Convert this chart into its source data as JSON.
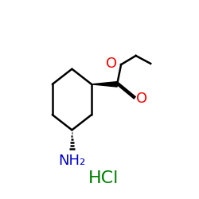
{
  "bg_color": "#ffffff",
  "ring_color": "#000000",
  "bond_width": 1.8,
  "wedge_color": "#000000",
  "dash_color": "#000000",
  "O_color": "#ff0000",
  "N_color": "#0000cc",
  "HCl_color": "#008000",
  "C_bond_color": "#000000",
  "HCl_text": "HCl",
  "HCl_fontsize": 16,
  "NH2_text": "NH₂",
  "NH2_fontsize": 13,
  "O_fontsize": 13
}
